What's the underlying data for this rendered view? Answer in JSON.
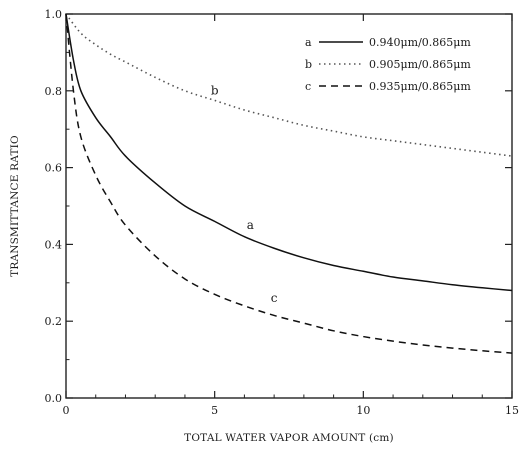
{
  "chart_data": {
    "type": "line",
    "title": "",
    "xlabel": "TOTAL WATER VAPOR AMOUNT (cm)",
    "ylabel": "TRANSMITTANCE RATIO",
    "xlim": [
      0,
      15
    ],
    "ylim": [
      0.0,
      1.0
    ],
    "x_ticks": [
      {
        "value": 0,
        "label": "0"
      },
      {
        "value": 5,
        "label": "5"
      },
      {
        "value": 10,
        "label": "10"
      },
      {
        "value": 15,
        "label": "15"
      }
    ],
    "y_ticks": [
      {
        "value": 0.0,
        "label": "0.0"
      },
      {
        "value": 0.2,
        "label": "0.2"
      },
      {
        "value": 0.4,
        "label": "0.4"
      },
      {
        "value": 0.6,
        "label": "0.6"
      },
      {
        "value": 0.8,
        "label": "0.8"
      },
      {
        "value": 1.0,
        "label": "1.0"
      }
    ],
    "grid": false,
    "legend_position": "top-right",
    "series": [
      {
        "key": "b",
        "name": "0.905μm/0.865μm",
        "style": "dotted",
        "color": "#555555",
        "x": [
          0,
          0.5,
          1,
          1.5,
          2,
          3,
          4,
          5,
          6,
          7,
          8,
          9,
          10,
          11,
          12,
          13,
          14,
          15
        ],
        "y": [
          1.0,
          0.95,
          0.92,
          0.895,
          0.875,
          0.835,
          0.8,
          0.775,
          0.75,
          0.73,
          0.71,
          0.695,
          0.68,
          0.67,
          0.66,
          0.65,
          0.64,
          0.63
        ]
      },
      {
        "key": "a",
        "name": "0.940μm/0.865μm",
        "style": "solid",
        "color": "#111111",
        "x": [
          0,
          0.25,
          0.5,
          1,
          1.5,
          2,
          3,
          4,
          5,
          6,
          7,
          8,
          9,
          10,
          11,
          12,
          13,
          14,
          15
        ],
        "y": [
          1.0,
          0.88,
          0.8,
          0.73,
          0.68,
          0.63,
          0.56,
          0.5,
          0.46,
          0.42,
          0.39,
          0.365,
          0.345,
          0.33,
          0.315,
          0.305,
          0.295,
          0.287,
          0.28
        ]
      },
      {
        "key": "c",
        "name": "0.935μm/0.865μm",
        "style": "dashed",
        "color": "#111111",
        "x": [
          0,
          0.25,
          0.5,
          1,
          1.5,
          2,
          3,
          4,
          5,
          6,
          7,
          8,
          9,
          10,
          11,
          12,
          13,
          14,
          15
        ],
        "y": [
          1.0,
          0.8,
          0.68,
          0.58,
          0.51,
          0.45,
          0.37,
          0.31,
          0.27,
          0.24,
          0.215,
          0.195,
          0.175,
          0.16,
          0.148,
          0.138,
          0.13,
          0.123,
          0.117
        ]
      }
    ],
    "annotations": [
      {
        "text": "b",
        "x": 5.0,
        "y": 0.79
      },
      {
        "text": "a",
        "x": 6.2,
        "y": 0.44
      },
      {
        "text": "c",
        "x": 7.0,
        "y": 0.25
      }
    ],
    "legend_keys": [
      "a",
      "b",
      "c"
    ]
  }
}
